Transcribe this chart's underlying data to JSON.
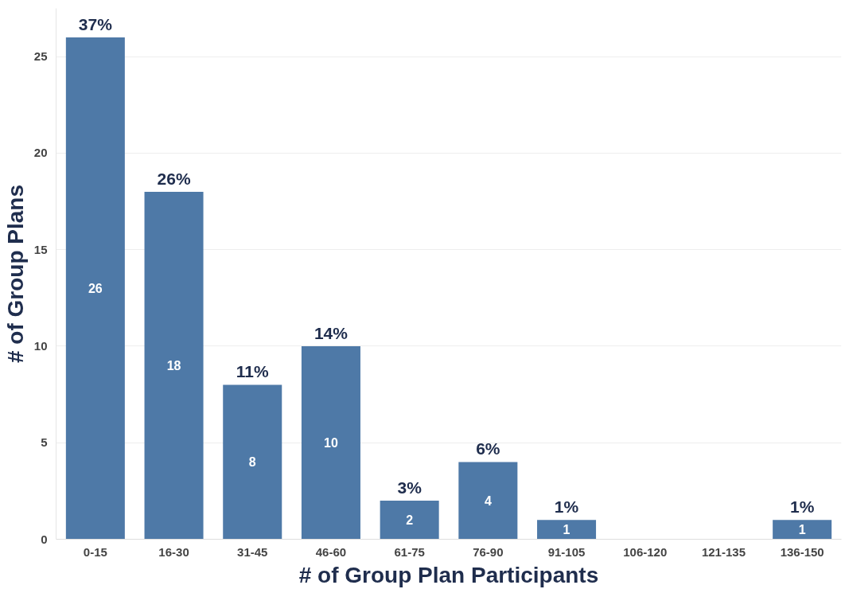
{
  "chart_data": {
    "type": "bar",
    "xlabel": "# of Group Plan Participants",
    "ylabel": "# of Group Plans",
    "categories": [
      "0-15",
      "16-30",
      "31-45",
      "46-60",
      "61-75",
      "76-90",
      "91-105",
      "106-120",
      "121-135",
      "136-150"
    ],
    "values": [
      26,
      18,
      8,
      10,
      2,
      4,
      1,
      0,
      0,
      1
    ],
    "value_labels": [
      "26",
      "18",
      "8",
      "10",
      "2",
      "4",
      "1",
      null,
      null,
      "1"
    ],
    "annotations": [
      {
        "text": "37%",
        "x": "0-15",
        "y": 26
      },
      {
        "text": "26%",
        "x": "16-30",
        "y": 18
      },
      {
        "text": "11%",
        "x": "31-45",
        "y": 8
      },
      {
        "text": "14%",
        "x": "46-60",
        "y": 10
      },
      {
        "text": "3%",
        "x": "61-75",
        "y": 2
      },
      {
        "text": "6%",
        "x": "76-90",
        "y": 4
      },
      {
        "text": "1%",
        "x": "91-105",
        "y": 1
      },
      {
        "text": "1%",
        "x": "136-150",
        "y": 1
      }
    ],
    "color": "#4e79a7",
    "ylim": [
      0,
      27.5
    ],
    "yticks": [
      0,
      5,
      10,
      15,
      20,
      25
    ],
    "grid": "y"
  }
}
